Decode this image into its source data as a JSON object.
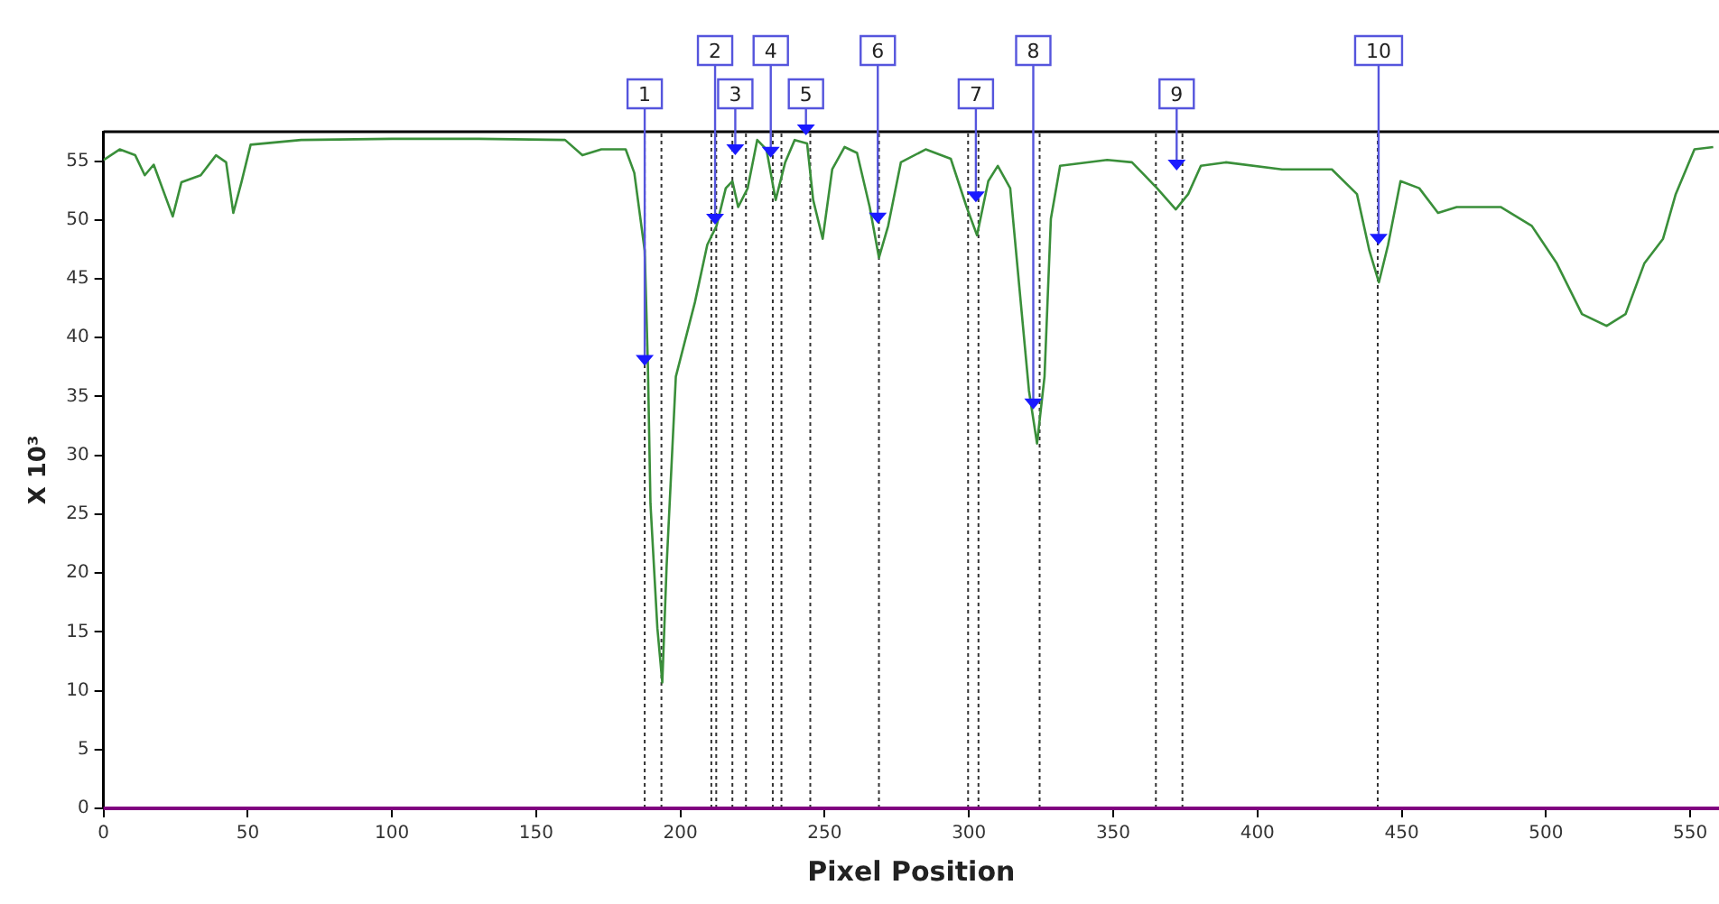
{
  "chart_data": {
    "type": "line",
    "xlabel": "Pixel Position",
    "ylabel": "X 10³",
    "x": [
      0,
      5.6,
      11,
      14.3,
      17.4,
      24,
      27,
      33.7,
      39,
      42.5,
      45,
      47.8,
      51,
      68.5,
      100,
      130,
      160,
      166,
      172.6,
      181,
      184,
      187.6,
      188.7,
      189.6,
      192,
      193.7,
      195.2,
      198.4,
      205,
      209.3,
      212.5,
      215.7,
      218,
      220,
      223.3,
      226.6,
      229.8,
      233,
      236.3,
      239.6,
      243.9,
      246,
      249.3,
      252.6,
      256.9,
      261.2,
      265.6,
      268.8,
      272,
      276.4,
      285,
      293.7,
      299.2,
      302.8,
      306.7,
      310,
      314.3,
      317.5,
      320.8,
      323.6,
      326.2,
      328.4,
      331.6,
      347.9,
      356.5,
      365.2,
      371.7,
      376,
      380.4,
      389,
      408.5,
      425.8,
      434.5,
      438.8,
      442.1,
      445.3,
      449.6,
      456.1,
      462.6,
      469.1,
      484.3,
      495.1,
      503.8,
      512.5,
      521.1,
      527.6,
      534.1,
      540.6,
      545,
      551.5,
      558
    ],
    "series": [
      {
        "color": "#3a8f3a",
        "values": [
          55.1,
          56,
          55.5,
          53.8,
          54.7,
          50.3,
          53.2,
          53.8,
          55.5,
          54.9,
          50.6,
          53.2,
          56.4,
          56.8,
          56.9,
          56.9,
          56.8,
          55.5,
          56,
          56,
          54,
          47.4,
          37.7,
          25.9,
          15.3,
          10.7,
          20.6,
          36.7,
          43,
          47.9,
          49.5,
          52.7,
          53.3,
          51.1,
          52.7,
          56.8,
          56,
          51.7,
          54.9,
          56.8,
          56.5,
          51.7,
          48.4,
          54.3,
          56.2,
          55.7,
          51.1,
          46.8,
          49.5,
          54.9,
          56,
          55.2,
          51.1,
          48.7,
          53.3,
          54.6,
          52.7,
          44.2,
          35.5,
          31,
          36.7,
          50.1,
          54.6,
          55.1,
          54.9,
          52.7,
          50.9,
          52.2,
          54.6,
          54.9,
          54.3,
          54.3,
          52.2,
          47.4,
          44.7,
          47.9,
          53.3,
          52.7,
          50.6,
          51.1,
          51.1,
          49.5,
          46.3,
          42,
          41,
          42,
          46.3,
          48.4,
          52.2,
          56,
          56.2
        ]
      }
    ],
    "xlim": [
      0,
      560
    ],
    "xticks": [
      0,
      50,
      100,
      150,
      200,
      250,
      300,
      350,
      400,
      450,
      500,
      550
    ],
    "ylim": [
      0,
      57.5
    ],
    "yticks": [
      0,
      5,
      10,
      15,
      20,
      25,
      30,
      35,
      40,
      45,
      50,
      55
    ],
    "grid": false,
    "legend": false,
    "marker": "none",
    "line_style": "solid",
    "ref_lines": [
      {
        "axis": "x",
        "value": 187.6,
        "color": "#333333",
        "line_style": "dotted"
      },
      {
        "axis": "x",
        "value": 193.4,
        "color": "#333333",
        "line_style": "dotted"
      },
      {
        "axis": "x",
        "value": 210.7,
        "color": "#333333",
        "line_style": "dotted"
      },
      {
        "axis": "x",
        "value": 212.4,
        "color": "#333333",
        "line_style": "dotted"
      },
      {
        "axis": "x",
        "value": 218,
        "color": "#333333",
        "line_style": "dotted"
      },
      {
        "axis": "x",
        "value": 222.7,
        "color": "#333333",
        "line_style": "dotted"
      },
      {
        "axis": "x",
        "value": 232,
        "color": "#333333",
        "line_style": "dotted"
      },
      {
        "axis": "x",
        "value": 235,
        "color": "#333333",
        "line_style": "dotted"
      },
      {
        "axis": "x",
        "value": 245,
        "color": "#333333",
        "line_style": "dotted"
      },
      {
        "axis": "x",
        "value": 268.8,
        "color": "#333333",
        "line_style": "dotted"
      },
      {
        "axis": "x",
        "value": 299.7,
        "color": "#333333",
        "line_style": "dotted"
      },
      {
        "axis": "x",
        "value": 303.3,
        "color": "#333333",
        "line_style": "dotted"
      },
      {
        "axis": "x",
        "value": 324.5,
        "color": "#333333",
        "line_style": "dotted"
      },
      {
        "axis": "x",
        "value": 364.8,
        "color": "#333333",
        "line_style": "dotted"
      },
      {
        "axis": "x",
        "value": 374,
        "color": "#333333",
        "line_style": "dotted"
      },
      {
        "axis": "x",
        "value": 441.7,
        "color": "#333333",
        "line_style": "dotted"
      }
    ],
    "annotations": [
      {
        "text": "1",
        "x": 187.6,
        "y": 37.6
      },
      {
        "text": "2",
        "x": 212,
        "y": 49.6
      },
      {
        "text": "3",
        "x": 219,
        "y": 55.5
      },
      {
        "text": "4",
        "x": 231.3,
        "y": 55.3
      },
      {
        "text": "5",
        "x": 243.5,
        "y": 57.2
      },
      {
        "text": "6",
        "x": 268.4,
        "y": 49.7
      },
      {
        "text": "7",
        "x": 302.4,
        "y": 51.5
      },
      {
        "text": "8",
        "x": 322.3,
        "y": 33.9
      },
      {
        "text": "9",
        "x": 372,
        "y": 54.2
      },
      {
        "text": "10",
        "x": 442,
        "y": 47.9
      }
    ]
  }
}
